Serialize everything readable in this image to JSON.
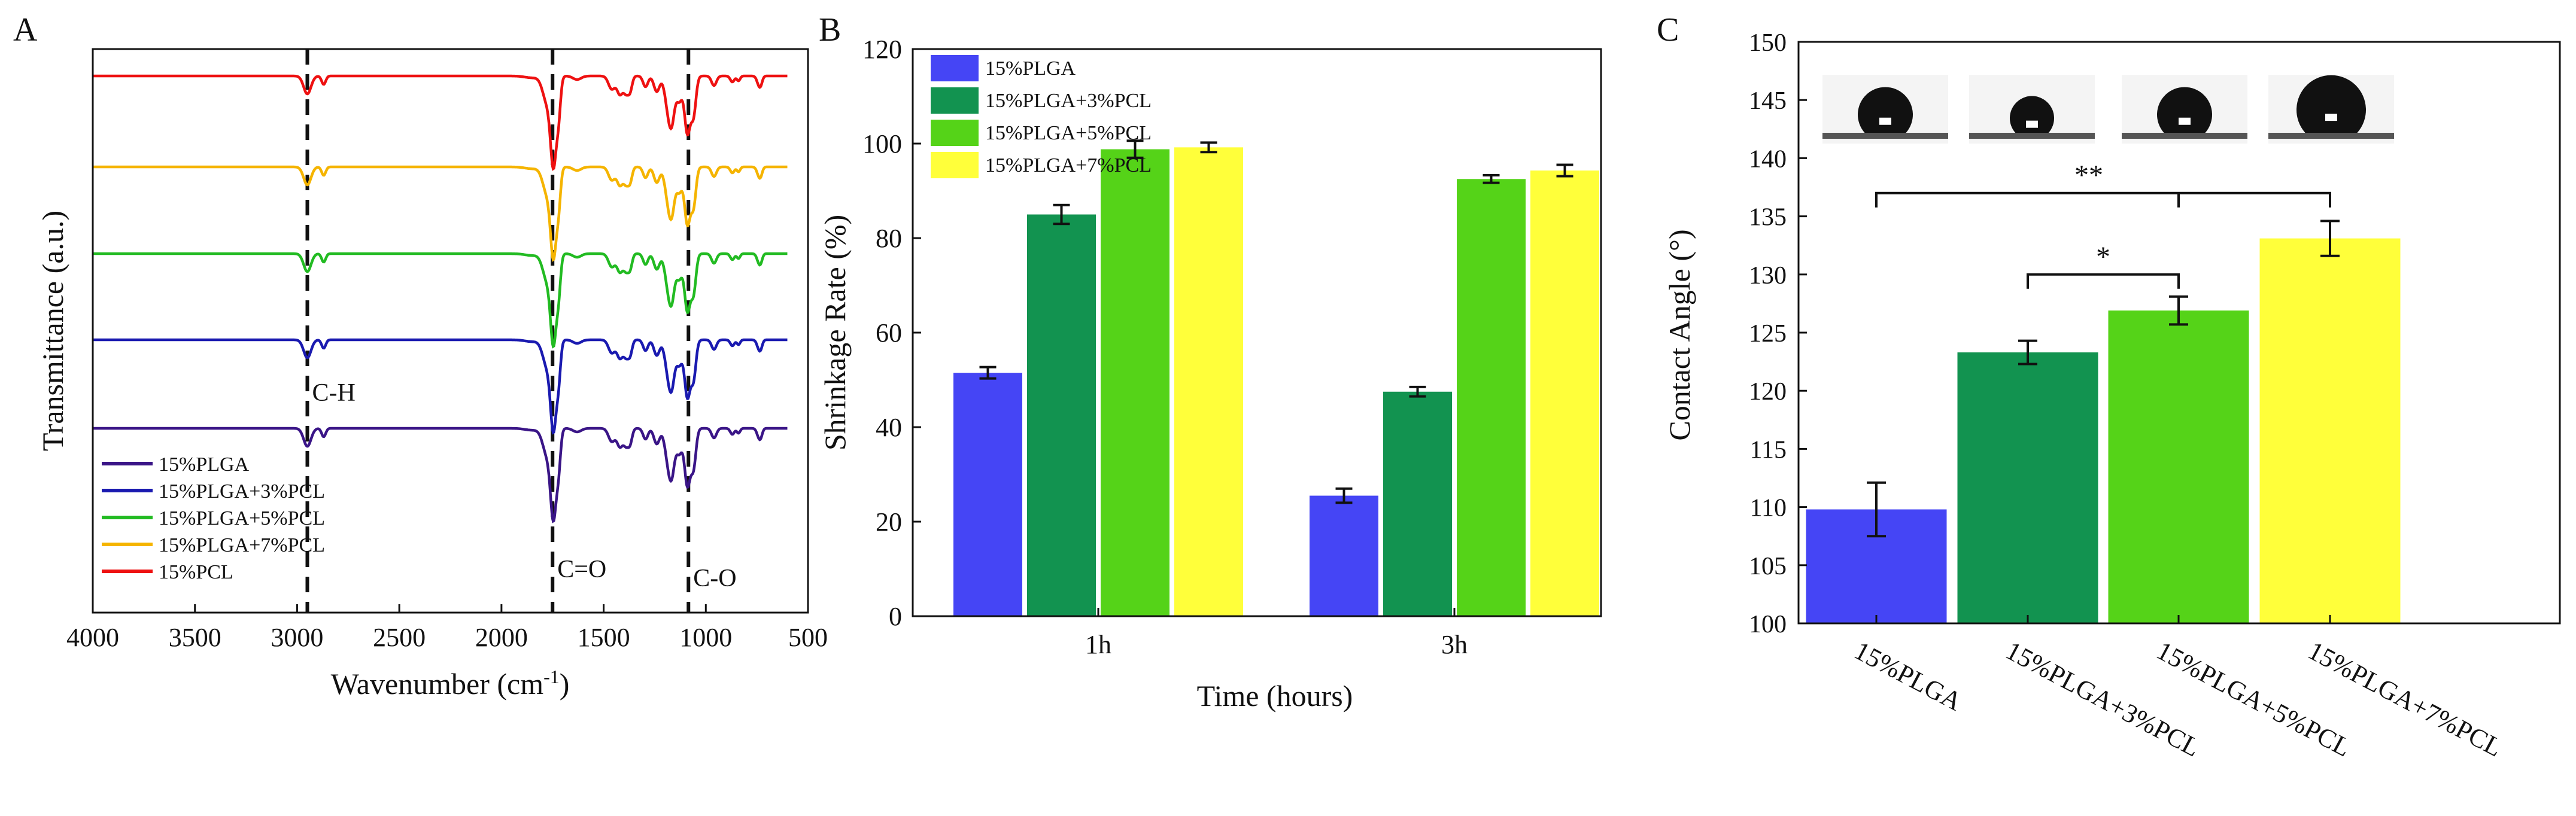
{
  "panels": {
    "a": {
      "letter": "A"
    },
    "b": {
      "letter": "B"
    },
    "c": {
      "letter": "C"
    }
  },
  "chart_data": [
    {
      "panel": "A",
      "type": "line",
      "title": "",
      "xlabel": "Wavenumber (cm-1)",
      "xlabel_base": "Wavenumber (cm",
      "xlabel_sup": "-1",
      "xlabel_end": ")",
      "ylabel": "Transmittance (a.u.)",
      "xlim": [
        4000,
        500
      ],
      "x_ticks": [
        "4000",
        "3500",
        "3000",
        "2500",
        "2000",
        "1500",
        "1000",
        "500"
      ],
      "x_tick_values": [
        4000,
        3500,
        3000,
        2500,
        2000,
        1500,
        1000,
        500
      ],
      "y_ticks": [],
      "reference_lines": [
        {
          "x": 2950,
          "label": "C-H"
        },
        {
          "x": 1750,
          "label": "C=O"
        },
        {
          "x": 1085,
          "label": "C-O"
        }
      ],
      "legend_position": "bottom-left",
      "series": [
        {
          "name": "15%PLGA",
          "color": "#3a1587",
          "offset": 0
        },
        {
          "name": "15%PLGA+3%PCL",
          "color": "#1a1ab0",
          "offset": 1
        },
        {
          "name": "15%PLGA+5%PCL",
          "color": "#22bb22",
          "offset": 2
        },
        {
          "name": "15%PLGA+7%PCL",
          "color": "#f5b400",
          "offset": 3
        },
        {
          "name": "15%PCL",
          "color": "#ee1111",
          "offset": 4
        }
      ]
    },
    {
      "panel": "B",
      "type": "bar",
      "title": "",
      "xlabel": "Time (hours)",
      "ylabel": "Shrinkage Rate (%)",
      "ylim": [
        0,
        120
      ],
      "y_ticks": [
        0,
        20,
        40,
        60,
        80,
        100,
        120
      ],
      "categories": [
        "1h",
        "3h"
      ],
      "legend_position": "top-left",
      "series": [
        {
          "name": "15%PLGA",
          "color": "#4545f5",
          "values": [
            51.5,
            25.5
          ],
          "errors": [
            1.2,
            1.5
          ]
        },
        {
          "name": "15%PLGA+3%PCL",
          "color": "#129350",
          "values": [
            85.0,
            47.5
          ],
          "errors": [
            2.0,
            1.0
          ]
        },
        {
          "name": "15%PLGA+5%PCL",
          "color": "#55d318",
          "values": [
            98.8,
            92.5
          ],
          "errors": [
            1.8,
            0.8
          ]
        },
        {
          "name": "15%PLGA+7%PCL",
          "color": "#ffff3a",
          "values": [
            99.2,
            94.3
          ],
          "errors": [
            1.0,
            1.2
          ]
        }
      ]
    },
    {
      "panel": "C",
      "type": "bar",
      "title": "",
      "xlabel": "",
      "ylabel": "Contact Angle (°)",
      "ylim": [
        100,
        150
      ],
      "y_ticks": [
        100,
        105,
        110,
        115,
        120,
        125,
        130,
        135,
        140,
        145,
        150
      ],
      "categories": [
        "15%PLGA",
        "15%PLGA+3%PCL",
        "15%PLGA+5%PCL",
        "15%PLGA+7%PCL"
      ],
      "values": [
        109.8,
        123.3,
        126.9,
        133.1
      ],
      "errors": [
        2.3,
        1.0,
        1.2,
        1.5
      ],
      "colors": [
        "#4545f5",
        "#129350",
        "#55d318",
        "#ffff3a"
      ],
      "significance": [
        {
          "from": 1,
          "to": 2,
          "mark": "*"
        },
        {
          "from": 0,
          "to": 3,
          "mark": "**"
        }
      ],
      "droplet_images": [
        "droplet-15%PLGA",
        "droplet-15%PLGA+3%PCL",
        "droplet-15%PLGA+5%PCL",
        "droplet-15%PLGA+7%PCL"
      ]
    }
  ]
}
